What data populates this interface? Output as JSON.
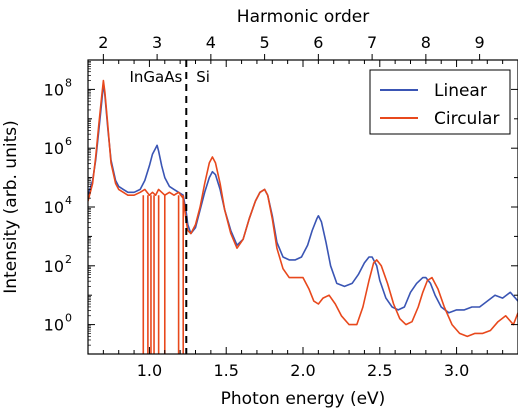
{
  "chart_data": {
    "type": "line",
    "xlabel": "Photon energy (eV)",
    "ylabel": "Intensity (arb. units)",
    "top_xlabel": "Harmonic order",
    "xlim": [
      0.6,
      3.4
    ],
    "ylim_log10": [
      -1.0,
      9.0
    ],
    "y_scale": "log",
    "grid": false,
    "x_ticks": [
      1.0,
      1.5,
      2.0,
      2.5,
      3.0
    ],
    "x_tick_labels": [
      "1.0",
      "1.5",
      "2.0",
      "2.5",
      "3.0"
    ],
    "y_ticks_log10": [
      0,
      2,
      4,
      6,
      8
    ],
    "y_tick_labels": [
      "10",
      "10",
      "10",
      "10",
      "10"
    ],
    "y_tick_exponents": [
      "0",
      "2",
      "4",
      "6",
      "8"
    ],
    "top_ticks": [
      {
        "label": "2",
        "energy": 0.7
      },
      {
        "label": "3",
        "energy": 1.05
      },
      {
        "label": "4",
        "energy": 1.4
      },
      {
        "label": "5",
        "energy": 1.75
      },
      {
        "label": "6",
        "energy": 2.1
      },
      {
        "label": "7",
        "energy": 2.45
      },
      {
        "label": "8",
        "energy": 2.8
      },
      {
        "label": "9",
        "energy": 3.15
      }
    ],
    "divider": {
      "energy": 1.24,
      "left_label": "InGaAs",
      "right_label": "Si"
    },
    "legend": {
      "placement": "top-right"
    },
    "series": [
      {
        "name": "Linear",
        "color": "#3a55b4",
        "x": [
          0.6,
          0.63,
          0.65,
          0.67,
          0.69,
          0.7,
          0.71,
          0.73,
          0.75,
          0.78,
          0.8,
          0.83,
          0.86,
          0.9,
          0.94,
          0.97,
          1.0,
          1.02,
          1.04,
          1.05,
          1.06,
          1.08,
          1.1,
          1.13,
          1.16,
          1.19,
          1.22,
          1.24,
          1.25,
          1.27,
          1.3,
          1.33,
          1.36,
          1.39,
          1.41,
          1.43,
          1.46,
          1.49,
          1.53,
          1.57,
          1.61,
          1.65,
          1.69,
          1.72,
          1.75,
          1.77,
          1.8,
          1.83,
          1.87,
          1.91,
          1.95,
          1.99,
          2.03,
          2.06,
          2.09,
          2.1,
          2.12,
          2.15,
          2.18,
          2.22,
          2.27,
          2.32,
          2.36,
          2.4,
          2.43,
          2.45,
          2.48,
          2.5,
          2.54,
          2.58,
          2.62,
          2.66,
          2.7,
          2.74,
          2.78,
          2.8,
          2.83,
          2.86,
          2.9,
          2.95,
          3.0,
          3.05,
          3.1,
          3.15,
          3.2,
          3.25,
          3.3,
          3.35,
          3.4
        ],
        "y": [
          4.4,
          4.9,
          5.6,
          6.6,
          7.6,
          8.2,
          7.8,
          6.6,
          5.6,
          4.9,
          4.7,
          4.6,
          4.5,
          4.5,
          4.6,
          4.9,
          5.4,
          5.8,
          6.0,
          6.1,
          5.9,
          5.4,
          5.0,
          4.7,
          4.6,
          4.5,
          4.4,
          3.8,
          3.4,
          3.1,
          3.3,
          3.9,
          4.5,
          5.0,
          5.2,
          5.1,
          4.6,
          3.9,
          3.2,
          2.7,
          2.9,
          3.6,
          4.2,
          4.5,
          4.6,
          4.4,
          3.7,
          2.8,
          2.3,
          2.2,
          2.2,
          2.3,
          2.7,
          3.2,
          3.6,
          3.7,
          3.5,
          2.8,
          2.0,
          1.4,
          1.3,
          1.4,
          1.7,
          2.1,
          2.3,
          2.3,
          2.0,
          1.5,
          0.9,
          0.6,
          0.5,
          0.6,
          1.1,
          1.4,
          1.6,
          1.6,
          1.4,
          1.0,
          0.6,
          0.4,
          0.5,
          0.5,
          0.6,
          0.6,
          0.8,
          1.0,
          0.9,
          1.1,
          0.8
        ]
      },
      {
        "name": "Circular",
        "color": "#e8481c",
        "x": [
          0.6,
          0.63,
          0.65,
          0.67,
          0.69,
          0.7,
          0.71,
          0.73,
          0.75,
          0.78,
          0.8,
          0.83,
          0.86,
          0.9,
          0.94,
          0.97,
          1.0,
          1.02,
          1.04,
          1.06,
          1.08,
          1.1,
          1.13,
          1.16,
          1.19,
          1.22,
          1.24,
          1.25,
          1.27,
          1.3,
          1.33,
          1.36,
          1.39,
          1.41,
          1.43,
          1.46,
          1.49,
          1.53,
          1.57,
          1.61,
          1.65,
          1.69,
          1.72,
          1.75,
          1.77,
          1.8,
          1.83,
          1.87,
          1.91,
          1.95,
          2.0,
          2.04,
          2.07,
          2.1,
          2.13,
          2.17,
          2.21,
          2.25,
          2.3,
          2.35,
          2.39,
          2.43,
          2.46,
          2.48,
          2.51,
          2.55,
          2.59,
          2.63,
          2.67,
          2.71,
          2.75,
          2.78,
          2.81,
          2.84,
          2.88,
          2.92,
          2.97,
          3.02,
          3.07,
          3.12,
          3.17,
          3.22,
          3.27,
          3.32,
          3.37,
          3.4
        ],
        "y": [
          4.2,
          4.8,
          5.7,
          6.8,
          7.8,
          8.3,
          7.9,
          6.7,
          5.5,
          4.8,
          4.6,
          4.5,
          4.4,
          4.4,
          4.5,
          4.6,
          4.4,
          4.5,
          4.4,
          4.6,
          4.5,
          4.4,
          4.5,
          4.4,
          4.5,
          4.3,
          3.5,
          3.2,
          3.1,
          3.4,
          4.0,
          4.8,
          5.5,
          5.7,
          5.5,
          4.8,
          3.9,
          3.1,
          2.6,
          2.9,
          3.6,
          4.2,
          4.5,
          4.6,
          4.4,
          3.6,
          2.6,
          1.9,
          1.6,
          1.6,
          1.6,
          1.2,
          0.8,
          0.7,
          0.9,
          1.0,
          0.7,
          0.3,
          0.0,
          0.0,
          0.6,
          1.5,
          2.1,
          2.2,
          2.0,
          1.4,
          0.7,
          0.2,
          0.0,
          0.1,
          0.6,
          1.1,
          1.5,
          1.6,
          1.2,
          0.6,
          0.0,
          -0.3,
          -0.4,
          -0.3,
          -0.3,
          -0.2,
          0.1,
          0.3,
          0.0,
          0.4
        ]
      }
    ],
    "circular_dropouts": [
      0.96,
      0.99,
      1.01,
      1.03,
      1.06,
      1.1,
      1.19,
      1.22
    ]
  }
}
